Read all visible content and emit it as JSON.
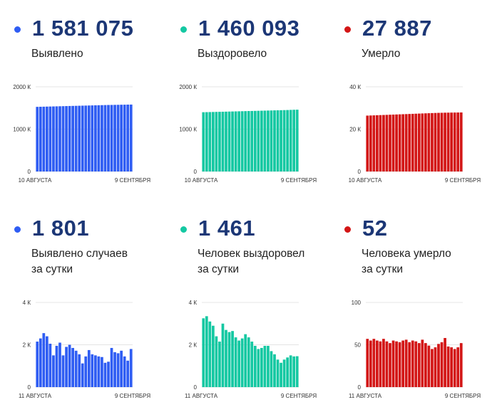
{
  "colors": {
    "blue": "#2f5df3",
    "teal": "#14c8a2",
    "red": "#d31616"
  },
  "panels": [
    {
      "id": "confirmed-total",
      "value": "1 581 075",
      "label": "Выявлено",
      "color": "#2f5df3",
      "chart_data": {
        "type": "bar",
        "yticks": [
          "2000 К",
          "1000 К",
          "0"
        ],
        "ylim": [
          0,
          2000
        ],
        "xticks": [
          "10 АВГУСТА",
          "9 СЕНТЯБРЯ"
        ],
        "values": [
          1527,
          1529,
          1531,
          1533,
          1535,
          1537,
          1539,
          1541,
          1543,
          1545,
          1547,
          1549,
          1551,
          1553,
          1555,
          1557,
          1559,
          1561,
          1563,
          1565,
          1567,
          1569,
          1571,
          1572,
          1574,
          1575,
          1577,
          1578,
          1580,
          1581
        ]
      }
    },
    {
      "id": "recovered-total",
      "value": "1 460 093",
      "label": "Выздоровело",
      "color": "#14c8a2",
      "chart_data": {
        "type": "bar",
        "yticks": [
          "2000 К",
          "1000 К",
          "0"
        ],
        "ylim": [
          0,
          2000
        ],
        "xticks": [
          "10 АВГУСТА",
          "9 СЕНТЯБРЯ"
        ],
        "values": [
          1400,
          1402,
          1404,
          1406,
          1408,
          1410,
          1412,
          1414,
          1416,
          1418,
          1420,
          1422,
          1424,
          1426,
          1428,
          1430,
          1432,
          1434,
          1436,
          1438,
          1440,
          1442,
          1444,
          1446,
          1448,
          1450,
          1452,
          1455,
          1458,
          1460
        ]
      }
    },
    {
      "id": "deaths-total",
      "value": "27 887",
      "label": "Умерло",
      "color": "#d31616",
      "chart_data": {
        "type": "bar",
        "yticks": [
          "40 К",
          "20 К",
          "0"
        ],
        "ylim": [
          0,
          40
        ],
        "xticks": [
          "10 АВГУСТА",
          "9 СЕНТЯБРЯ"
        ],
        "values": [
          26.4,
          26.46,
          26.52,
          26.58,
          26.64,
          26.7,
          26.76,
          26.82,
          26.88,
          26.94,
          27,
          27.06,
          27.12,
          27.18,
          27.24,
          27.3,
          27.36,
          27.42,
          27.48,
          27.54,
          27.6,
          27.65,
          27.7,
          27.74,
          27.78,
          27.8,
          27.83,
          27.85,
          27.87,
          27.89
        ]
      }
    },
    {
      "id": "confirmed-daily",
      "value": "1 801",
      "label": "Выявлено случаев\nза сутки",
      "color": "#2f5df3",
      "chart_data": {
        "type": "bar",
        "yticks": [
          "4 К",
          "2 К",
          "0"
        ],
        "ylim": [
          0,
          4
        ],
        "xticks": [
          "11 АВГУСТА",
          "9 СЕНТЯБРЯ"
        ],
        "values": [
          2.15,
          2.3,
          2.55,
          2.4,
          2.05,
          1.5,
          1.95,
          2.1,
          1.5,
          1.9,
          2.0,
          1.85,
          1.72,
          1.55,
          1.12,
          1.45,
          1.75,
          1.55,
          1.5,
          1.45,
          1.42,
          1.15,
          1.2,
          1.85,
          1.65,
          1.6,
          1.72,
          1.45,
          1.25,
          1.8
        ]
      }
    },
    {
      "id": "recovered-daily",
      "value": "1 461",
      "label": "Человек выздоровел\nза сутки",
      "color": "#14c8a2",
      "chart_data": {
        "type": "bar",
        "yticks": [
          "4 К",
          "2 К",
          "0"
        ],
        "ylim": [
          0,
          4
        ],
        "xticks": [
          "11 АВГУСТА",
          "9 СЕНТЯБРЯ"
        ],
        "values": [
          3.25,
          3.35,
          3.1,
          2.9,
          2.4,
          2.15,
          3.0,
          2.7,
          2.6,
          2.65,
          2.35,
          2.2,
          2.3,
          2.5,
          2.35,
          2.15,
          1.95,
          1.8,
          1.85,
          1.95,
          1.95,
          1.7,
          1.55,
          1.3,
          1.15,
          1.3,
          1.4,
          1.5,
          1.45,
          1.46
        ]
      }
    },
    {
      "id": "deaths-daily",
      "value": "52",
      "label": "Человека умерло\nза сутки",
      "color": "#d31616",
      "chart_data": {
        "type": "bar",
        "yticks": [
          "100",
          "50",
          "0"
        ],
        "ylim": [
          0,
          100
        ],
        "xticks": [
          "11 АВГУСТА",
          "9 СЕНТЯБРЯ"
        ],
        "values": [
          57,
          55,
          57,
          55,
          54,
          57,
          54,
          52,
          55,
          54,
          53,
          55,
          56,
          53,
          55,
          54,
          52,
          56,
          52,
          49,
          45,
          47,
          51,
          53,
          58,
          48,
          47,
          45,
          47,
          52
        ]
      }
    }
  ]
}
